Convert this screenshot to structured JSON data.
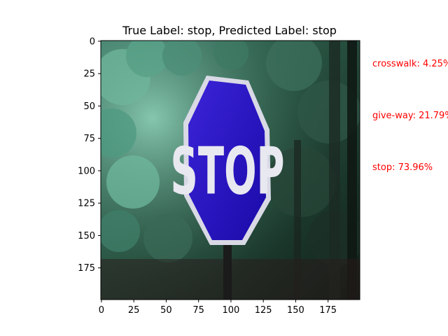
{
  "title": "True Label: stop, Predicted Label: stop",
  "image": {
    "description_icon": "stop-sign-photo",
    "sign_text": "STOP",
    "sign_color": "#2a10c8",
    "foliage_color": "#2f6f5a"
  },
  "axes": {
    "x_ticks": [
      "0",
      "25",
      "50",
      "75",
      "100",
      "125",
      "150",
      "175"
    ],
    "y_ticks": [
      "0",
      "25",
      "50",
      "75",
      "100",
      "125",
      "150",
      "175"
    ]
  },
  "predictions": [
    {
      "label": "crosswalk: 4.25%"
    },
    {
      "label": "give-way: 21.79%"
    },
    {
      "label": "stop: 73.96%"
    }
  ],
  "colors": {
    "prediction_text": "#ff0000"
  }
}
